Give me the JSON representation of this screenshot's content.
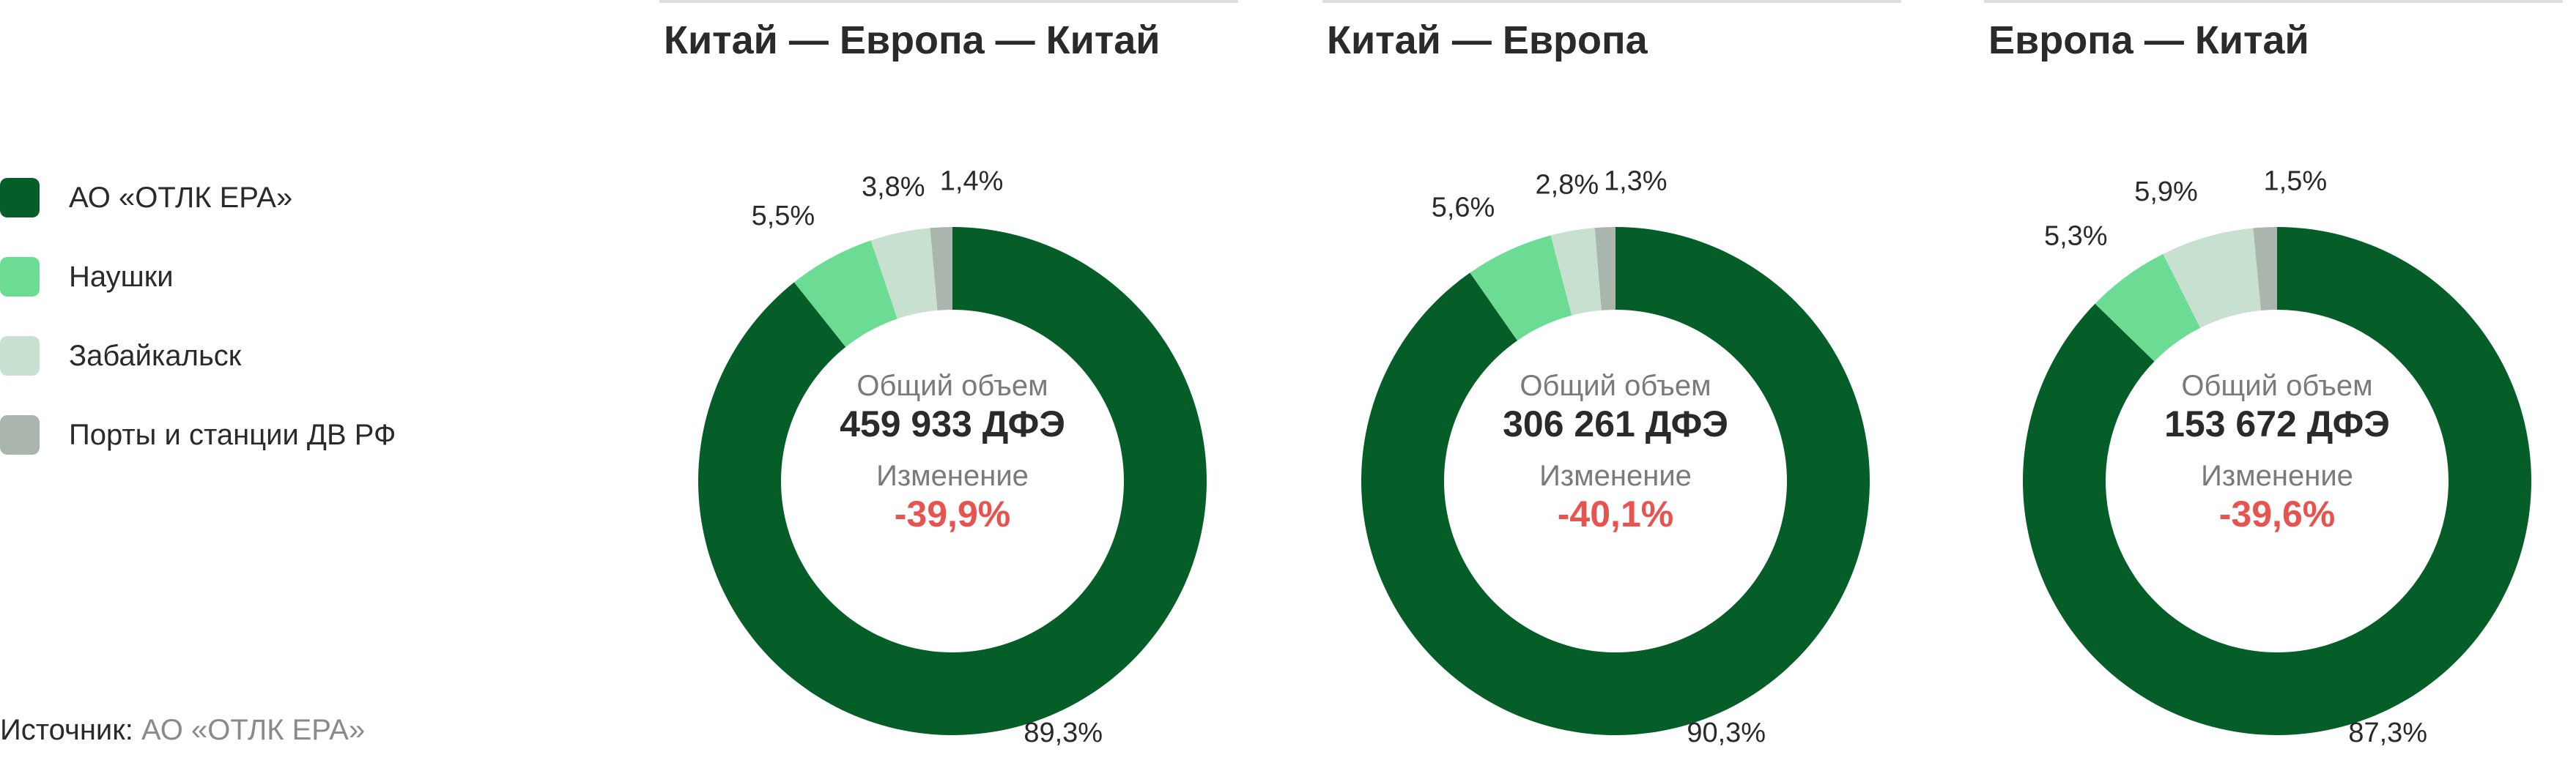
{
  "legend": [
    {
      "label": "АО «ОТЛК ЕРА»",
      "color": "#055e28"
    },
    {
      "label": "Наушки",
      "color": "#6cdc94"
    },
    {
      "label": "Забайкальск",
      "color": "#c8e0d0"
    },
    {
      "label": "Порты и станции ДВ РФ",
      "color": "#aab5ad"
    }
  ],
  "source": {
    "label": "Источник:",
    "value": "АО «ОТЛК ЕРА»"
  },
  "center_labels": {
    "total": "Общий объем",
    "change": "Изменение"
  },
  "chart_data": [
    {
      "type": "pie",
      "title": "Китай — Европа — Китай",
      "categories": [
        "АО «ОТЛК ЕРА»",
        "Наушки",
        "Забайкальск",
        "Порты и станции ДВ РФ"
      ],
      "values": [
        89.3,
        5.5,
        3.8,
        1.4
      ],
      "value_labels": [
        "89,3%",
        "5,5%",
        "3,8%",
        "1,4%"
      ],
      "total": "459 933 ДФЭ",
      "change": "-39,9%"
    },
    {
      "type": "pie",
      "title": "Китай — Европа",
      "categories": [
        "АО «ОТЛК ЕРА»",
        "Наушки",
        "Забайкальск",
        "Порты и станции ДВ РФ"
      ],
      "values": [
        90.3,
        5.6,
        2.8,
        1.3
      ],
      "value_labels": [
        "90,3%",
        "5,6%",
        "2,8%",
        "1,3%"
      ],
      "total": "306 261 ДФЭ",
      "change": "-40,1%"
    },
    {
      "type": "pie",
      "title": "Европа — Китай",
      "categories": [
        "АО «ОТЛК ЕРА»",
        "Наушки",
        "Забайкальск",
        "Порты и станции ДВ РФ"
      ],
      "values": [
        87.3,
        5.3,
        5.9,
        1.5
      ],
      "value_labels": [
        "87,3%",
        "5,3%",
        "5,9%",
        "1,5%"
      ],
      "total": "153 672 ДФЭ",
      "change": "-39,6%"
    }
  ]
}
